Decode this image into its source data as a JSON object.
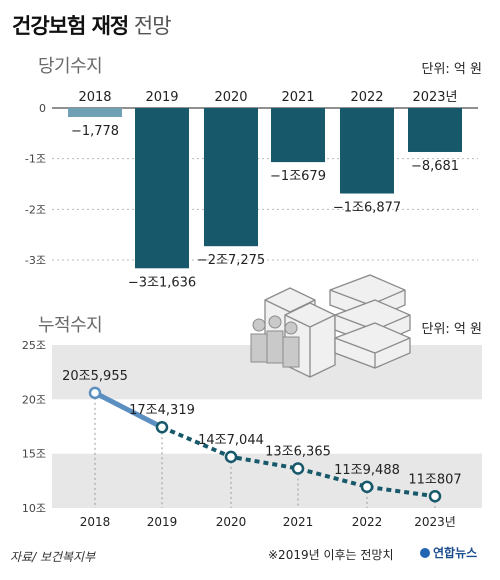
{
  "title_bold": "건강보험 재정",
  "title_light": "전망",
  "section1_label": "당기수지",
  "section2_label": "누적수지",
  "unit1": "단위: 억 원",
  "unit2": "단위: 억 원",
  "source": "자료/ 보건복지부",
  "note": "※2019년 이후는 전망치",
  "logo": "연합뉴스",
  "colors": {
    "bar": "#17596a",
    "bar_first": "#6fa0b3",
    "line_actual": "#5b8fc0",
    "line_forecast": "#17596a",
    "band": "#e7e7e7"
  },
  "icon": "people-and-money-stacks-icon",
  "chart_data": [
    {
      "type": "bar",
      "title": "당기수지",
      "categories": [
        "2018",
        "2019",
        "2020",
        "2021",
        "2022",
        "2023년"
      ],
      "values": [
        -1778,
        -31636,
        -27275,
        -10679,
        -16877,
        -8681
      ],
      "value_labels": [
        "−1,778",
        "−3조1,636",
        "−2조7,275",
        "−1조679",
        "−1조6,877",
        "−8,681"
      ],
      "ytick_values": [
        0,
        -10000,
        -20000,
        -30000
      ],
      "ytick_labels": [
        "0",
        "-1조",
        "-2조",
        "-3조"
      ],
      "ylim": [
        -34000,
        0
      ]
    },
    {
      "type": "line",
      "title": "누적수지",
      "categories": [
        "2018",
        "2019",
        "2020",
        "2021",
        "2022",
        "2023년"
      ],
      "values": [
        205955,
        174319,
        147044,
        136365,
        119488,
        110807
      ],
      "value_labels": [
        "20조5,955",
        "17조4,319",
        "14조7,044",
        "13조6,365",
        "11조9,488",
        "11조807"
      ],
      "forecast_from_index": 1,
      "ytick_values": [
        250000,
        200000,
        150000,
        100000
      ],
      "ytick_labels": [
        "25조",
        "20조",
        "15조",
        "10조"
      ],
      "ylim": [
        100000,
        250000
      ]
    }
  ]
}
